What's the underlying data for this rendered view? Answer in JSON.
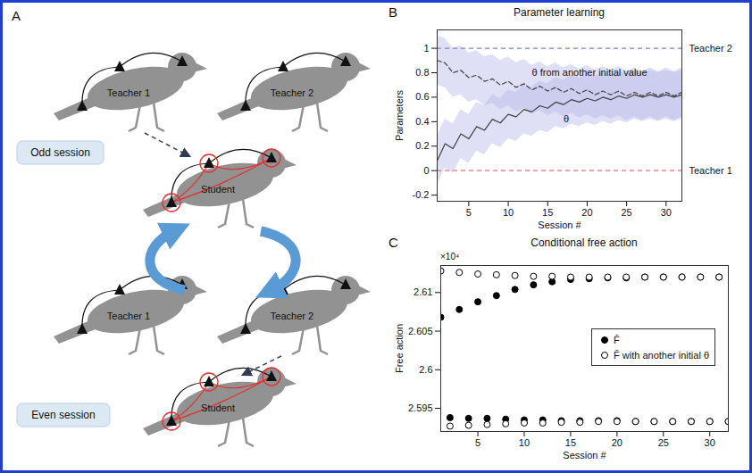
{
  "diagram": {
    "label": "A",
    "rows": [
      {
        "teachers": [
          "Teacher 1",
          "Teacher 2"
        ],
        "student": "Student",
        "session": "Odd session",
        "active_teacher": 0
      },
      {
        "teachers": [
          "Teacher 1",
          "Teacher 2"
        ],
        "student": "Student",
        "session": "Even session",
        "active_teacher": 1
      }
    ]
  },
  "chart_data": [
    {
      "label": "B",
      "type": "line",
      "title": "Parameter learning",
      "x_label": "Session #",
      "y_label": "Parameters",
      "xlim": [
        1,
        32
      ],
      "ylim": [
        -0.25,
        1.15
      ],
      "xticks": [
        5,
        10,
        15,
        20,
        25,
        30
      ],
      "yticks": [
        -0.2,
        0,
        0.2,
        0.4,
        0.6,
        0.8,
        1
      ],
      "grid": false,
      "x": [
        1,
        2,
        3,
        4,
        5,
        6,
        7,
        8,
        9,
        10,
        11,
        12,
        13,
        14,
        15,
        16,
        17,
        18,
        19,
        20,
        21,
        22,
        23,
        24,
        25,
        26,
        27,
        28,
        29,
        30,
        31,
        32
      ],
      "series": [
        {
          "name": "θ",
          "color": "#404040",
          "line_style": "solid",
          "label_x": 17,
          "label_y": 0.42,
          "values": [
            0.08,
            0.22,
            0.18,
            0.3,
            0.26,
            0.36,
            0.33,
            0.42,
            0.39,
            0.46,
            0.44,
            0.5,
            0.48,
            0.53,
            0.51,
            0.56,
            0.54,
            0.58,
            0.56,
            0.59,
            0.57,
            0.6,
            0.58,
            0.61,
            0.59,
            0.62,
            0.6,
            0.62,
            0.6,
            0.62,
            0.6,
            0.62
          ],
          "lower": [
            -0.12,
            0.02,
            -0.02,
            0.1,
            0.06,
            0.16,
            0.13,
            0.22,
            0.19,
            0.26,
            0.24,
            0.3,
            0.28,
            0.33,
            0.31,
            0.36,
            0.34,
            0.38,
            0.36,
            0.39,
            0.37,
            0.4,
            0.38,
            0.41,
            0.39,
            0.42,
            0.4,
            0.42,
            0.4,
            0.42,
            0.4,
            0.42
          ],
          "upper": [
            0.28,
            0.42,
            0.38,
            0.5,
            0.46,
            0.56,
            0.53,
            0.62,
            0.59,
            0.66,
            0.64,
            0.7,
            0.68,
            0.73,
            0.71,
            0.76,
            0.74,
            0.78,
            0.76,
            0.79,
            0.77,
            0.8,
            0.78,
            0.81,
            0.79,
            0.82,
            0.8,
            0.82,
            0.8,
            0.82,
            0.8,
            0.82
          ]
        },
        {
          "name": "θ from another initial value",
          "color": "#404040",
          "line_style": "dashed",
          "label_x": 13,
          "label_y": 0.8,
          "values": [
            0.9,
            0.88,
            0.8,
            0.82,
            0.76,
            0.78,
            0.73,
            0.75,
            0.7,
            0.73,
            0.68,
            0.71,
            0.66,
            0.69,
            0.65,
            0.68,
            0.64,
            0.67,
            0.63,
            0.66,
            0.62,
            0.65,
            0.62,
            0.65,
            0.61,
            0.64,
            0.61,
            0.64,
            0.61,
            0.64,
            0.61,
            0.64
          ],
          "lower": [
            0.7,
            0.68,
            0.6,
            0.62,
            0.56,
            0.58,
            0.53,
            0.55,
            0.5,
            0.53,
            0.48,
            0.51,
            0.46,
            0.49,
            0.45,
            0.48,
            0.44,
            0.47,
            0.43,
            0.46,
            0.42,
            0.45,
            0.42,
            0.45,
            0.41,
            0.44,
            0.41,
            0.44,
            0.41,
            0.44,
            0.41,
            0.44
          ],
          "upper": [
            1.1,
            1.08,
            1.0,
            1.02,
            0.96,
            0.98,
            0.93,
            0.95,
            0.9,
            0.93,
            0.88,
            0.91,
            0.86,
            0.89,
            0.85,
            0.88,
            0.84,
            0.87,
            0.83,
            0.86,
            0.82,
            0.85,
            0.82,
            0.85,
            0.81,
            0.84,
            0.81,
            0.84,
            0.81,
            0.84,
            0.81,
            0.84
          ]
        }
      ],
      "reference_lines": [
        {
          "label": "Teacher 2",
          "value": 1,
          "color": "#7f7fd0",
          "line_style": "dashed"
        },
        {
          "label": "Teacher 1",
          "value": 0,
          "color": "#e07070",
          "line_style": "dashed"
        }
      ]
    },
    {
      "label": "C",
      "type": "scatter",
      "title": "Conditional free action",
      "x_label": "Session #",
      "y_label": "Free action",
      "y_multiplier_label": "×10⁴",
      "xlim": [
        1,
        32
      ],
      "ylim": [
        2.592,
        2.6135
      ],
      "xticks": [
        5,
        10,
        15,
        20,
        25,
        30
      ],
      "yticks": [
        2.595,
        2.6,
        2.605,
        2.61
      ],
      "grid": false,
      "legend": "right",
      "x": [
        1,
        2,
        3,
        4,
        5,
        6,
        7,
        8,
        9,
        10,
        11,
        12,
        13,
        14,
        15,
        16,
        17,
        18,
        19,
        20,
        21,
        22,
        23,
        24,
        25,
        26,
        27,
        28,
        29,
        30,
        31,
        32
      ],
      "series": [
        {
          "name": "F̄",
          "color": "#000000",
          "marker": "filled circle",
          "values": [
            2.6068,
            2.5938,
            2.6078,
            2.5937,
            2.6088,
            2.5937,
            2.6096,
            2.5936,
            2.6104,
            2.5935,
            2.611,
            2.5935,
            2.6114,
            2.5934,
            2.6117,
            2.5934,
            2.6118,
            2.5934,
            2.6119,
            2.5934,
            2.6119,
            2.5933,
            2.612,
            2.5933,
            2.612,
            2.5933,
            2.612,
            2.5933,
            2.612,
            2.5933,
            2.612,
            2.5933
          ]
        },
        {
          "name": "F̄ with another initial θ",
          "color": "#000000",
          "marker": "open circle",
          "values": [
            2.6128,
            2.5927,
            2.6126,
            2.5928,
            2.6124,
            2.5929,
            2.6123,
            2.593,
            2.6122,
            2.5931,
            2.6121,
            2.5931,
            2.6121,
            2.5932,
            2.612,
            2.5932,
            2.612,
            2.5933,
            2.612,
            2.5933,
            2.612,
            2.5933,
            2.612,
            2.5933,
            2.612,
            2.5933,
            2.612,
            2.5933,
            2.612,
            2.5933,
            2.612,
            2.5933
          ]
        }
      ]
    }
  ]
}
